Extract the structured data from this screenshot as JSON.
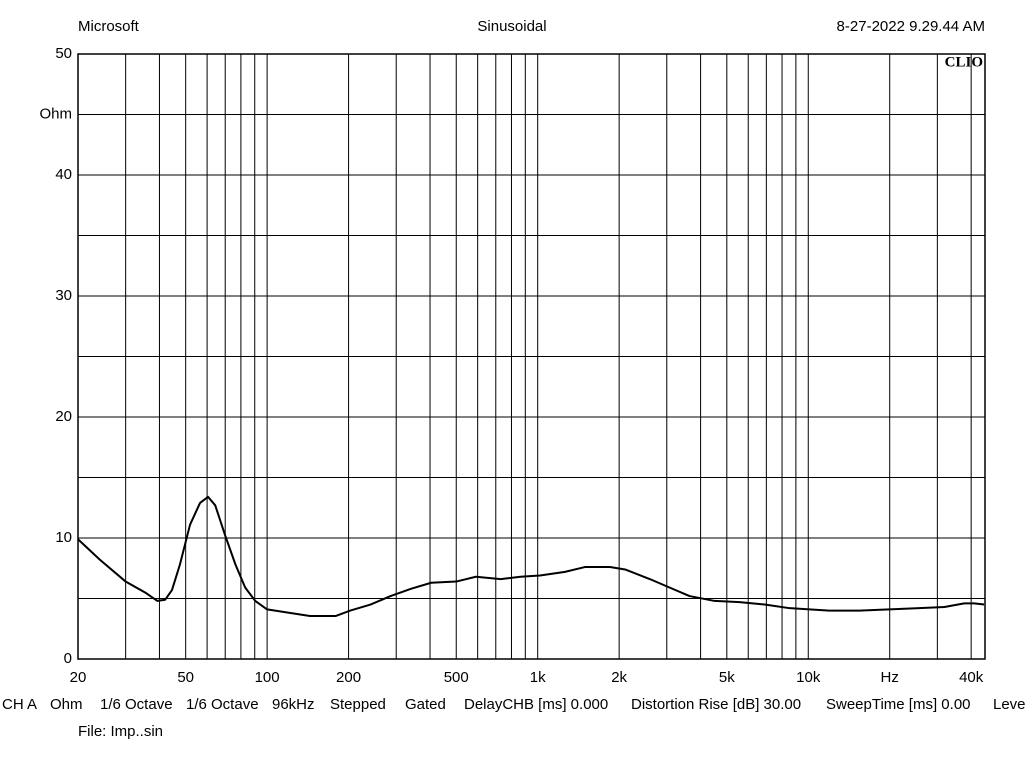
{
  "chart_data": {
    "type": "line",
    "header_left": "Microsoft",
    "header_center": "Sinusoidal",
    "header_right": "8-27-2022 9.29.44 AM",
    "logo": "CLIO",
    "x": [
      20,
      24.1,
      30,
      35.4,
      39.3,
      42,
      44.5,
      47.6,
      51.9,
      56.5,
      60.5,
      64.3,
      70,
      76.4,
      83,
      90.4,
      100,
      122,
      144,
      179,
      203,
      241,
      286,
      340,
      404,
      500,
      591,
      730,
      864,
      1020,
      1261,
      1494,
      1850,
      2104,
      2600,
      3077,
      3641,
      4504,
      5574,
      6897,
      8534,
      10100,
      11960,
      15450,
      19940,
      25750,
      31870,
      37720,
      41040,
      44650
    ],
    "values": [
      9.9,
      8.2,
      6.4,
      5.5,
      4.8,
      4.9,
      5.7,
      7.8,
      11.1,
      12.9,
      13.4,
      12.7,
      10.2,
      7.8,
      5.9,
      4.8,
      4.1,
      3.8,
      3.55,
      3.55,
      4.0,
      4.5,
      5.2,
      5.8,
      6.3,
      6.4,
      6.8,
      6.6,
      6.8,
      6.9,
      7.2,
      7.6,
      7.6,
      7.4,
      6.6,
      5.9,
      5.2,
      4.8,
      4.7,
      4.5,
      4.2,
      4.1,
      4.0,
      4.0,
      4.1,
      4.2,
      4.3,
      4.6,
      4.6,
      4.5
    ],
    "color": "#000000",
    "xlog": true,
    "xlim": [
      20,
      45000
    ],
    "xticks": [
      20,
      50,
      100,
      200,
      500,
      {
        "value": 1000,
        "label": "1k"
      },
      {
        "value": 2000,
        "label": "2k"
      },
      {
        "value": 5000,
        "label": "5k"
      },
      {
        "value": 10000,
        "label": "10k"
      },
      {
        "value": 20000,
        "label": "Hz"
      },
      {
        "value": 40000,
        "label": "40k"
      }
    ],
    "xgrid": [
      20,
      30,
      40,
      50,
      60,
      70,
      80,
      90,
      100,
      200,
      300,
      400,
      500,
      600,
      700,
      800,
      900,
      1000,
      2000,
      3000,
      4000,
      5000,
      6000,
      7000,
      8000,
      9000,
      10000,
      20000,
      30000,
      40000
    ],
    "ylim": [
      0,
      50
    ],
    "yticks": [
      0,
      10,
      20,
      30,
      40,
      {
        "value": 45,
        "label": "Ohm"
      },
      50
    ],
    "ygrid_minor": [
      5,
      15,
      25,
      35
    ],
    "grid": true,
    "settings": [
      "CH A",
      "Ohm",
      "1/6 Octave",
      "1/6 Octave",
      "96kHz",
      "Stepped",
      "Gated",
      "DelayCHB [ms] 0.000",
      "Distortion Rise [dB] 30.00",
      "SweepTime [ms] 0.00",
      "Leve"
    ],
    "file": "File: Imp..sin"
  }
}
